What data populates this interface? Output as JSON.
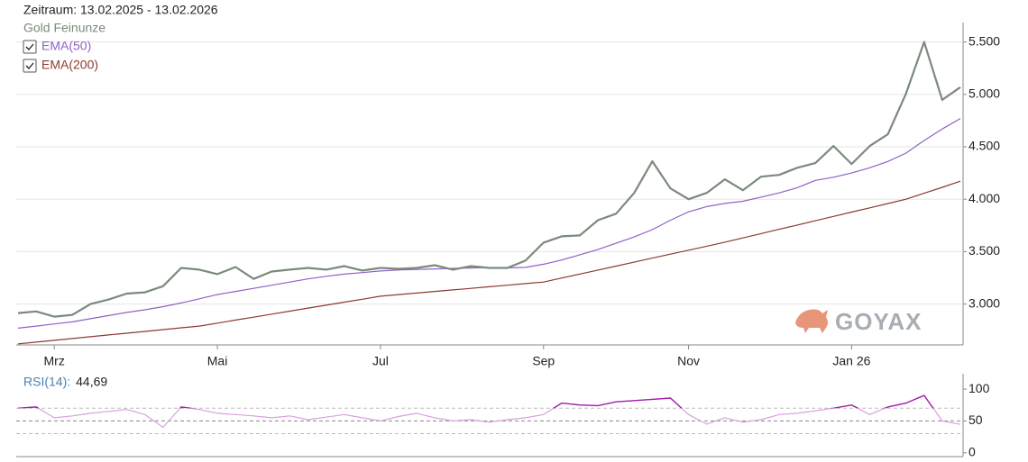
{
  "header": {
    "period": "Zeitraum: 13.02.2025 - 13.02.2026",
    "logo": "GOYAX"
  },
  "chart_data": [
    {
      "type": "line",
      "categories": [
        null,
        null,
        "Mrz",
        null,
        null,
        null,
        null,
        null,
        null,
        null,
        null,
        "Mai",
        null,
        null,
        null,
        null,
        null,
        null,
        null,
        null,
        "Jul",
        null,
        null,
        null,
        null,
        null,
        null,
        null,
        null,
        "Sep",
        null,
        null,
        null,
        null,
        null,
        null,
        null,
        "Nov",
        null,
        null,
        null,
        null,
        null,
        null,
        null,
        null,
        "Jan 26",
        null,
        null,
        null,
        null,
        null,
        null
      ],
      "series": [
        {
          "name": "Gold Feinunze",
          "color": "#7b8a7b",
          "values": [
            2914,
            2930,
            2880,
            2897,
            3000,
            3043,
            3100,
            3112,
            3170,
            3345,
            3328,
            3285,
            3353,
            3240,
            3310,
            3328,
            3345,
            3328,
            3362,
            3320,
            3345,
            3336,
            3345,
            3370,
            3328,
            3362,
            3345,
            3345,
            3414,
            3586,
            3646,
            3655,
            3800,
            3862,
            4060,
            4362,
            4103,
            4000,
            4060,
            4190,
            4086,
            4215,
            4232,
            4300,
            4345,
            4508,
            4336,
            4508,
            4620,
            5008,
            5500,
            4948,
            5069
          ]
        },
        {
          "name": "EMA(50)",
          "color": "#9060c8",
          "values": [
            2770,
            2790,
            2810,
            2830,
            2860,
            2890,
            2920,
            2945,
            2975,
            3010,
            3050,
            3090,
            3120,
            3150,
            3180,
            3210,
            3240,
            3265,
            3285,
            3300,
            3315,
            3325,
            3330,
            3335,
            3340,
            3345,
            3348,
            3345,
            3350,
            3380,
            3420,
            3470,
            3520,
            3580,
            3640,
            3710,
            3800,
            3880,
            3930,
            3960,
            3980,
            4020,
            4060,
            4110,
            4180,
            4210,
            4250,
            4300,
            4360,
            4440,
            4560,
            4670,
            4770
          ]
        },
        {
          "name": "EMA(200)",
          "color": "#8b3a2e",
          "values": [
            2620,
            2637,
            2654,
            2671,
            2688,
            2705,
            2722,
            2739,
            2756,
            2773,
            2790,
            2818,
            2847,
            2875,
            2904,
            2932,
            2961,
            2989,
            3018,
            3046,
            3075,
            3090,
            3105,
            3120,
            3135,
            3150,
            3165,
            3180,
            3195,
            3210,
            3248,
            3286,
            3324,
            3362,
            3400,
            3438,
            3476,
            3514,
            3552,
            3590,
            3631,
            3672,
            3713,
            3754,
            3795,
            3836,
            3877,
            3918,
            3959,
            4000,
            4057,
            4114,
            4172
          ]
        }
      ],
      "ylim": [
        2610,
        5600
      ],
      "yticks": [
        {
          "value": 3000,
          "label": "3.000"
        },
        {
          "value": 3500,
          "label": "3.500"
        },
        {
          "value": 4000,
          "label": "4.000"
        },
        {
          "value": 4500,
          "label": "4.500"
        },
        {
          "value": 5000,
          "label": "5.000"
        },
        {
          "value": 5500,
          "label": "5.500"
        }
      ],
      "grid": true
    },
    {
      "type": "line",
      "series": [
        {
          "name": "RSI(14):",
          "color": "#d9a0e0",
          "overbought_color": "#a020a8",
          "values": [
            70,
            72,
            55,
            58,
            62,
            65,
            68,
            60,
            40,
            72,
            68,
            62,
            60,
            58,
            55,
            58,
            52,
            56,
            60,
            55,
            50,
            57,
            62,
            55,
            50,
            52,
            48,
            52,
            55,
            60,
            78,
            75,
            74,
            80,
            82,
            84,
            86,
            60,
            45,
            55,
            48,
            52,
            60,
            62,
            66,
            70,
            75,
            60,
            72,
            78,
            90,
            50,
            44.69
          ],
          "value_labels": [
            null,
            null,
            null,
            null,
            null,
            null,
            null,
            null,
            null,
            null,
            null,
            null,
            null,
            null,
            null,
            null,
            null,
            null,
            null,
            null,
            null,
            null,
            null,
            null,
            null,
            null,
            null,
            null,
            null,
            null,
            null,
            null,
            null,
            null,
            null,
            null,
            null,
            null,
            null,
            null,
            null,
            null,
            null,
            null,
            null,
            null,
            null,
            null,
            null,
            null,
            null,
            null,
            "44,69"
          ]
        }
      ],
      "ylim": [
        -6,
        110
      ],
      "yticks": [
        0,
        50,
        100
      ],
      "hlines": [
        30,
        50,
        70
      ]
    }
  ]
}
